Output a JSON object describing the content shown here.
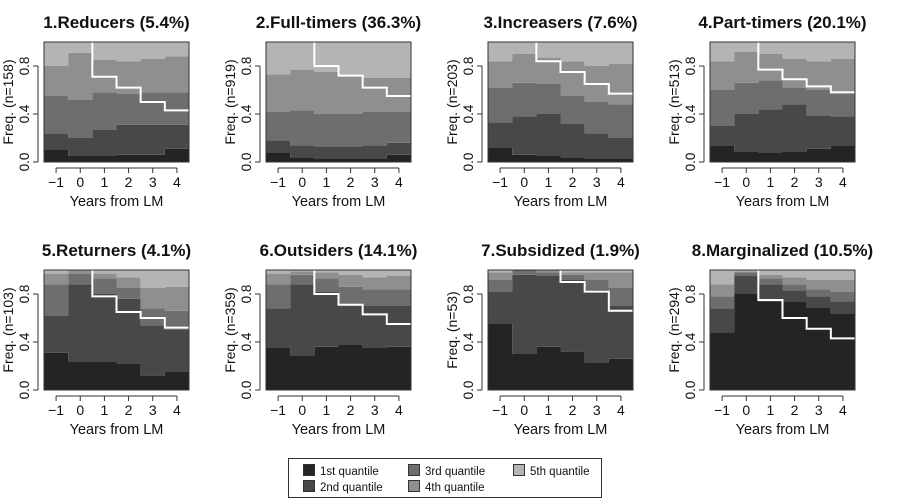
{
  "figure": {
    "xlabel": "Years from LM",
    "ylabel_prefix": "Freq.",
    "x_ticks": [
      -1,
      0,
      1,
      2,
      3,
      4
    ],
    "y_ticks": [
      "0.0",
      "0.4",
      "0.8"
    ],
    "colors": {
      "1st quantile": "#242424",
      "2nd quantile": "#484848",
      "3rd quantile": "#6e6e6e",
      "4th quantile": "#8f8f8f",
      "5th quantile": "#b4b4b4",
      "step_line": "#ffffff"
    }
  },
  "legend": {
    "placement": "bottom-center",
    "items": [
      {
        "label": "1st quantile",
        "color": "#242424"
      },
      {
        "label": "2nd quantile",
        "color": "#484848"
      },
      {
        "label": "3rd quantile",
        "color": "#6e6e6e"
      },
      {
        "label": "4th quantile",
        "color": "#8f8f8f"
      },
      {
        "label": "5th quantile",
        "color": "#b4b4b4"
      }
    ]
  },
  "chart_data": [
    {
      "type": "area",
      "title": "1.Reducers (5.4%)",
      "n_label": "(n=158)",
      "xlabel": "Years from LM",
      "ylabel": "Freq. (n=158)",
      "x": [
        -1,
        0,
        1,
        2,
        3,
        4
      ],
      "ylim": [
        0,
        1
      ],
      "cumulative": [
        [
          0.1,
          0.05,
          0.05,
          0.06,
          0.06,
          0.11
        ],
        [
          0.24,
          0.2,
          0.27,
          0.31,
          0.31,
          0.31
        ],
        [
          0.55,
          0.52,
          0.58,
          0.57,
          0.58,
          0.58
        ],
        [
          0.8,
          0.91,
          0.85,
          0.84,
          0.86,
          0.88
        ],
        [
          1,
          1,
          1,
          1,
          1,
          1
        ]
      ],
      "step_line": {
        "x": [
          1,
          2,
          3,
          4
        ],
        "y": [
          0.71,
          0.62,
          0.5,
          0.43
        ]
      }
    },
    {
      "type": "area",
      "title": "2.Full-timers (36.3%)",
      "n_label": "(n=919)",
      "xlabel": "Years from LM",
      "ylabel": "Freq. (n=919)",
      "x": [
        -1,
        0,
        1,
        2,
        3,
        4
      ],
      "ylim": [
        0,
        1
      ],
      "cumulative": [
        [
          0.08,
          0.04,
          0.03,
          0.03,
          0.03,
          0.06
        ],
        [
          0.18,
          0.14,
          0.13,
          0.13,
          0.14,
          0.16
        ],
        [
          0.42,
          0.43,
          0.4,
          0.4,
          0.42,
          0.42
        ],
        [
          0.73,
          0.77,
          0.75,
          0.72,
          0.7,
          0.7
        ],
        [
          1,
          1,
          1,
          1,
          1,
          1
        ]
      ],
      "step_line": {
        "x": [
          1,
          2,
          3,
          4
        ],
        "y": [
          0.8,
          0.72,
          0.62,
          0.55
        ]
      }
    },
    {
      "type": "area",
      "title": "3.Increasers (7.6%)",
      "n_label": "(n=203)",
      "xlabel": "Years from LM",
      "ylabel": "Freq. (n=203)",
      "x": [
        -1,
        0,
        1,
        2,
        3,
        4
      ],
      "ylim": [
        0,
        1
      ],
      "cumulative": [
        [
          0.12,
          0.06,
          0.05,
          0.04,
          0.03,
          0.03
        ],
        [
          0.33,
          0.38,
          0.4,
          0.32,
          0.24,
          0.2
        ],
        [
          0.62,
          0.66,
          0.65,
          0.55,
          0.5,
          0.48
        ],
        [
          0.84,
          0.9,
          0.87,
          0.84,
          0.8,
          0.82
        ],
        [
          1,
          1,
          1,
          1,
          1,
          1
        ]
      ],
      "step_line": {
        "x": [
          1,
          2,
          3,
          4
        ],
        "y": [
          0.84,
          0.75,
          0.65,
          0.57
        ]
      }
    },
    {
      "type": "area",
      "title": "4.Part-timers (20.1%)",
      "n_label": "(n=513)",
      "xlabel": "Years from LM",
      "ylabel": "Freq. (n=513)",
      "x": [
        -1,
        0,
        1,
        2,
        3,
        4
      ],
      "ylim": [
        0,
        1
      ],
      "cumulative": [
        [
          0.14,
          0.09,
          0.08,
          0.09,
          0.11,
          0.14
        ],
        [
          0.3,
          0.4,
          0.44,
          0.48,
          0.39,
          0.38
        ],
        [
          0.6,
          0.66,
          0.68,
          0.62,
          0.6,
          0.59
        ],
        [
          0.84,
          0.92,
          0.9,
          0.86,
          0.84,
          0.86
        ],
        [
          1,
          1,
          1,
          1,
          1,
          1
        ]
      ],
      "step_line": {
        "x": [
          1,
          2,
          3,
          4
        ],
        "y": [
          0.77,
          0.69,
          0.63,
          0.58
        ]
      }
    },
    {
      "type": "area",
      "title": "5.Returners (4.1%)",
      "n_label": "(n=103)",
      "xlabel": "Years from LM",
      "ylabel": "Freq. (n=103)",
      "x": [
        -1,
        0,
        1,
        2,
        3,
        4
      ],
      "ylim": [
        0,
        1
      ],
      "cumulative": [
        [
          0.31,
          0.24,
          0.24,
          0.22,
          0.12,
          0.15
        ],
        [
          0.62,
          0.88,
          0.8,
          0.76,
          0.54,
          0.5
        ],
        [
          0.88,
          0.97,
          0.93,
          0.85,
          0.68,
          0.66
        ],
        [
          0.97,
          1.0,
          0.97,
          0.94,
          0.85,
          0.86
        ],
        [
          1,
          1,
          1,
          1,
          1,
          1
        ]
      ],
      "step_line": {
        "x": [
          1,
          2,
          3,
          4
        ],
        "y": [
          0.78,
          0.65,
          0.6,
          0.52
        ]
      }
    },
    {
      "type": "area",
      "title": "6.Outsiders (14.1%)",
      "n_label": "(n=359)",
      "xlabel": "Years from LM",
      "ylabel": "Freq. (n=359)",
      "x": [
        -1,
        0,
        1,
        2,
        3,
        4
      ],
      "ylim": [
        0,
        1
      ],
      "cumulative": [
        [
          0.35,
          0.29,
          0.36,
          0.38,
          0.35,
          0.36
        ],
        [
          0.68,
          0.88,
          0.82,
          0.72,
          0.7,
          0.7
        ],
        [
          0.88,
          0.96,
          0.93,
          0.86,
          0.84,
          0.84
        ],
        [
          0.97,
          0.99,
          0.98,
          0.96,
          0.94,
          0.95
        ],
        [
          1,
          1,
          1,
          1,
          1,
          1
        ]
      ],
      "step_line": {
        "x": [
          1,
          2,
          3,
          4
        ],
        "y": [
          0.8,
          0.71,
          0.63,
          0.55
        ]
      }
    },
    {
      "type": "area",
      "title": "7.Subsidized (1.9%)",
      "n_label": "(n=53)",
      "xlabel": "Years from LM",
      "ylabel": "Freq. (n=53)",
      "x": [
        -1,
        0,
        1,
        2,
        3,
        4
      ],
      "ylim": [
        0,
        1
      ],
      "cumulative": [
        [
          0.55,
          0.3,
          0.36,
          0.32,
          0.23,
          0.26
        ],
        [
          0.82,
          0.96,
          0.95,
          0.92,
          0.84,
          0.7
        ],
        [
          0.92,
          1.0,
          0.98,
          0.96,
          0.92,
          0.85
        ],
        [
          0.98,
          1.0,
          1.0,
          0.98,
          0.98,
          0.98
        ],
        [
          1,
          1,
          1,
          1,
          1,
          1
        ]
      ],
      "step_line": {
        "x": [
          2,
          3,
          4
        ],
        "y": [
          0.9,
          0.82,
          0.66
        ]
      }
    },
    {
      "type": "area",
      "title": "8.Marginalized (10.5%)",
      "n_label": "(n=294)",
      "xlabel": "Years from LM",
      "ylabel": "Freq. (n=294)",
      "x": [
        -1,
        0,
        1,
        2,
        3,
        4
      ],
      "ylim": [
        0,
        1
      ],
      "cumulative": [
        [
          0.48,
          0.8,
          0.74,
          0.74,
          0.69,
          0.64
        ],
        [
          0.68,
          0.95,
          0.88,
          0.83,
          0.78,
          0.74
        ],
        [
          0.78,
          0.98,
          0.93,
          0.88,
          0.84,
          0.82
        ],
        [
          0.88,
          0.99,
          0.96,
          0.94,
          0.92,
          0.92
        ],
        [
          1,
          1,
          1,
          1,
          1,
          1
        ]
      ],
      "step_line": {
        "x": [
          1,
          2,
          3,
          4
        ],
        "y": [
          0.75,
          0.6,
          0.51,
          0.43
        ]
      }
    }
  ]
}
